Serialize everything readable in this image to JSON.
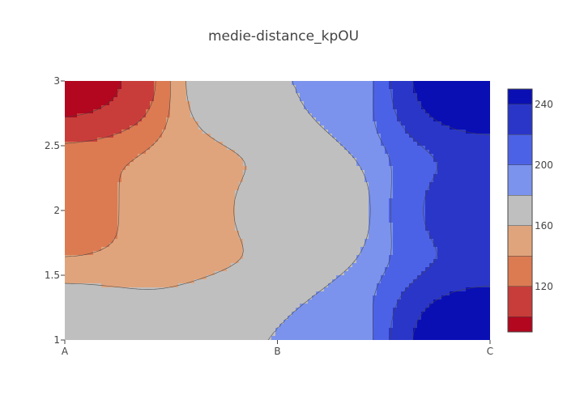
{
  "chart_data": {
    "type": "heatmap",
    "subtype": "contour",
    "title": "medie-distance_kpOU",
    "xlabel": "",
    "ylabel": "",
    "x": [
      "A",
      "B",
      "C"
    ],
    "x_tick_labels": [
      "A",
      "B",
      "C"
    ],
    "y_ticks": [
      1,
      1.5,
      2,
      2.5,
      3
    ],
    "y_tick_labels": [
      "1",
      "1.5",
      "2",
      "2.5",
      "3"
    ],
    "ylim": [
      1,
      3
    ],
    "contour_start": 100,
    "contour_step": 20,
    "zlim": [
      90,
      250
    ],
    "grid": [
      {
        "x": 0,
        "y": 1,
        "z": 170
      },
      {
        "x": 0,
        "y": 2,
        "z": 136
      },
      {
        "x": 0,
        "y": 3,
        "z": 98
      },
      {
        "x": 0.5,
        "y": 2,
        "z": 143
      },
      {
        "x": 1,
        "y": 1,
        "z": 180
      },
      {
        "x": 1,
        "y": 2,
        "z": 164
      },
      {
        "x": 1,
        "y": 3,
        "z": 180
      },
      {
        "x": 2,
        "y": 1,
        "z": 248
      },
      {
        "x": 2,
        "y": 2,
        "z": 223
      },
      {
        "x": 2,
        "y": 3,
        "z": 248
      }
    ],
    "colorbar": {
      "tick_values": [
        120,
        160,
        200,
        240
      ],
      "tick_labels": [
        "120",
        "160",
        "200",
        "240"
      ],
      "bands": [
        {
          "from": 90,
          "to": 100,
          "color": "#b2071f"
        },
        {
          "from": 100,
          "to": 120,
          "color": "#c83d3a"
        },
        {
          "from": 120,
          "to": 140,
          "color": "#dc7a52"
        },
        {
          "from": 140,
          "to": 160,
          "color": "#e0a47c"
        },
        {
          "from": 160,
          "to": 180,
          "color": "#bfbfbf"
        },
        {
          "from": 180,
          "to": 200,
          "color": "#7b93ec"
        },
        {
          "from": 200,
          "to": 220,
          "color": "#4c62e6"
        },
        {
          "from": 220,
          "to": 240,
          "color": "#2a36c8"
        },
        {
          "from": 240,
          "to": 250,
          "color": "#0a0fb4"
        }
      ]
    }
  }
}
